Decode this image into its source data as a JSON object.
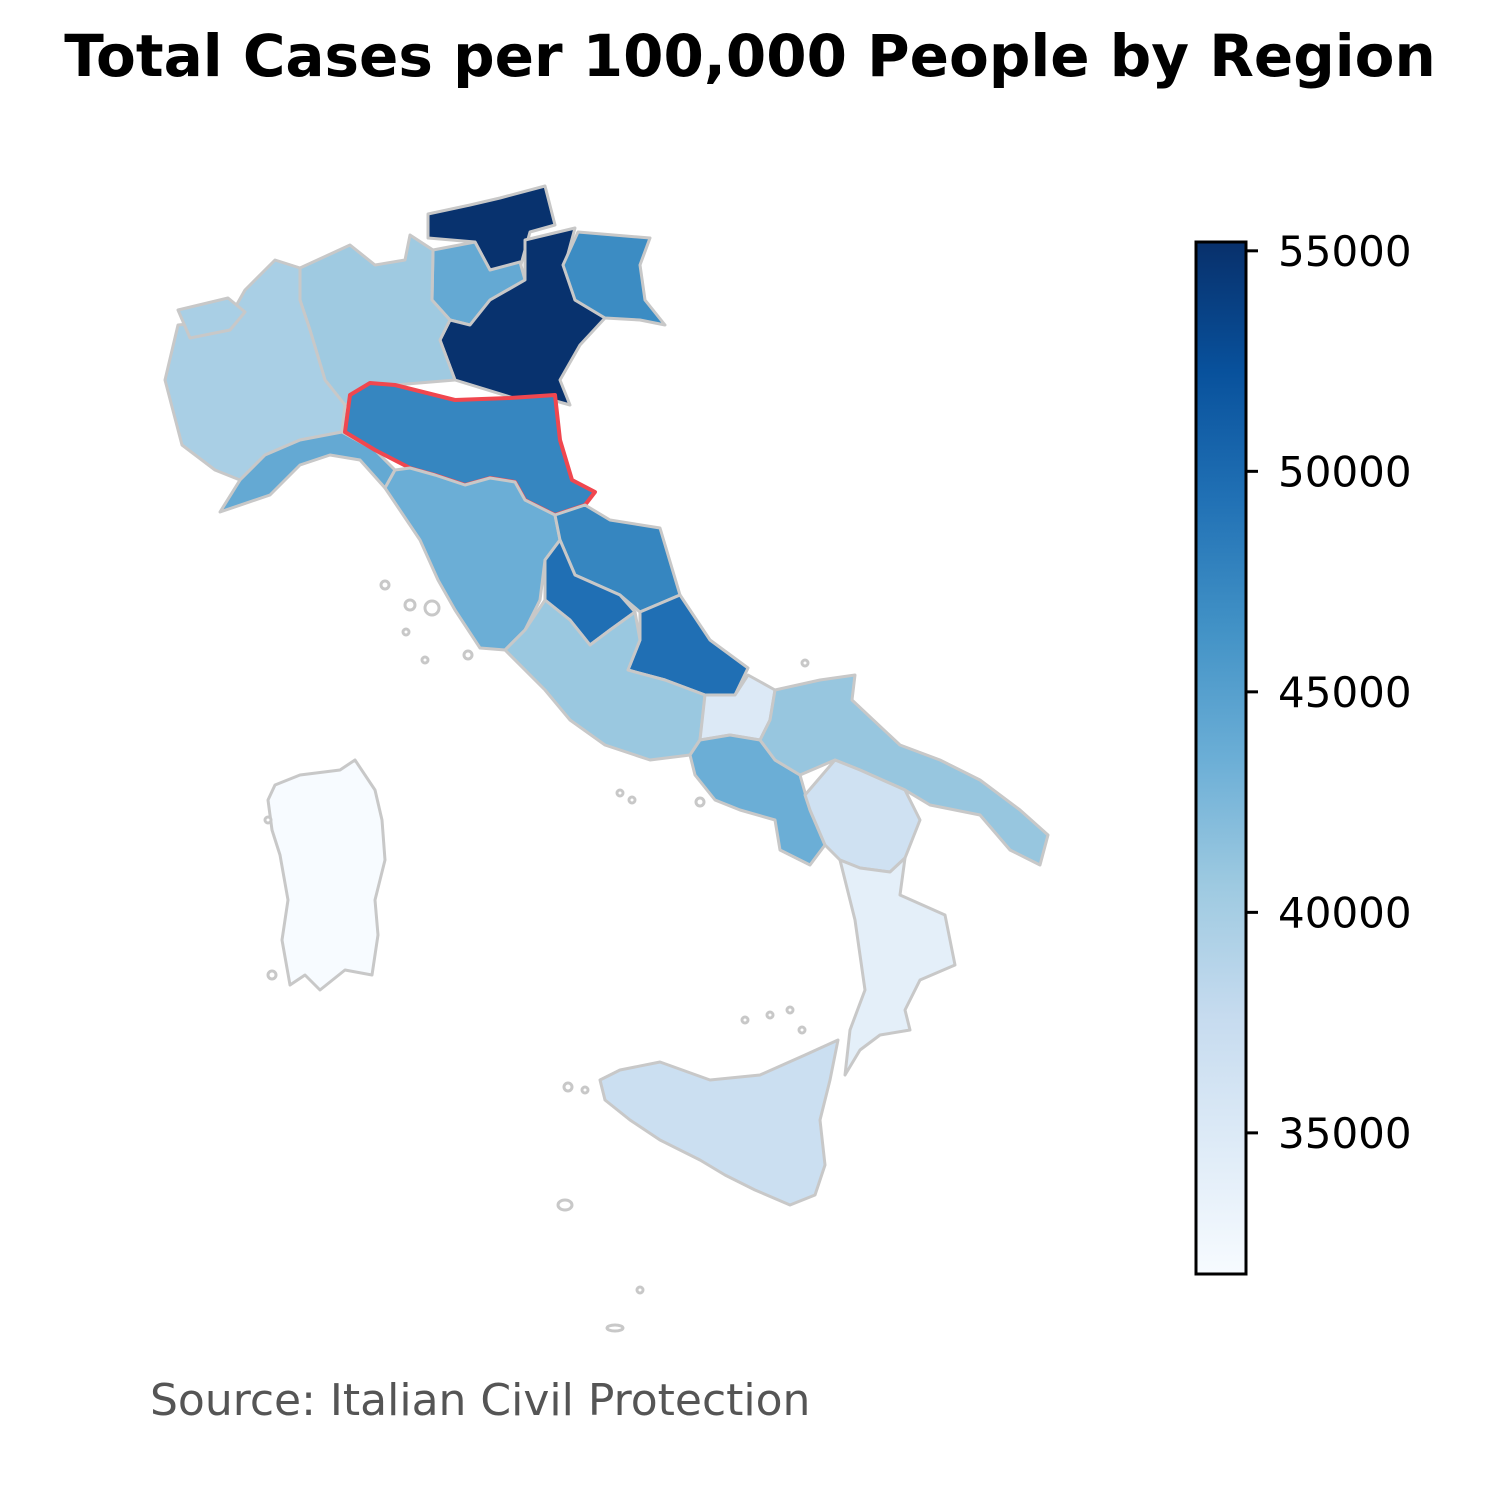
{
  "title": "Total Cases per 100,000 People by Region",
  "source": "Source: Italian Civil Protection",
  "colorbar": {
    "min": 31800,
    "max": 55200,
    "ticks": [
      {
        "value": 35000,
        "label": "35000"
      },
      {
        "value": 40000,
        "label": "40000"
      },
      {
        "value": 45000,
        "label": "45000"
      },
      {
        "value": 50000,
        "label": "50000"
      },
      {
        "value": 55000,
        "label": "55000"
      }
    ],
    "colormap": "Blues"
  },
  "highlight_color": "#f0474f",
  "border_color": "#c8c8c8",
  "regions": [
    {
      "id": "trentino-south-tyrol-north",
      "value": 55000
    },
    {
      "id": "trentino-south",
      "value": 44000
    },
    {
      "id": "veneto",
      "value": 55000
    },
    {
      "id": "friuli-venezia-giulia",
      "value": 47000
    },
    {
      "id": "lombardy",
      "value": 40500
    },
    {
      "id": "piedmont",
      "value": 39800
    },
    {
      "id": "aosta-valley",
      "value": 39800
    },
    {
      "id": "liguria",
      "value": 44000
    },
    {
      "id": "emilia-romagna",
      "value": 47500,
      "highlighted": true
    },
    {
      "id": "tuscany",
      "value": 43500
    },
    {
      "id": "marche",
      "value": 47500
    },
    {
      "id": "umbria",
      "value": 49500
    },
    {
      "id": "abruzzo",
      "value": 49500
    },
    {
      "id": "lazio",
      "value": 40800
    },
    {
      "id": "molise",
      "value": 35000
    },
    {
      "id": "campania",
      "value": 43500
    },
    {
      "id": "apulia",
      "value": 41000
    },
    {
      "id": "basilicata",
      "value": 36500
    },
    {
      "id": "calabria",
      "value": 34000
    },
    {
      "id": "sicily",
      "value": 37000
    },
    {
      "id": "sardinia",
      "value": 31800
    }
  ]
}
